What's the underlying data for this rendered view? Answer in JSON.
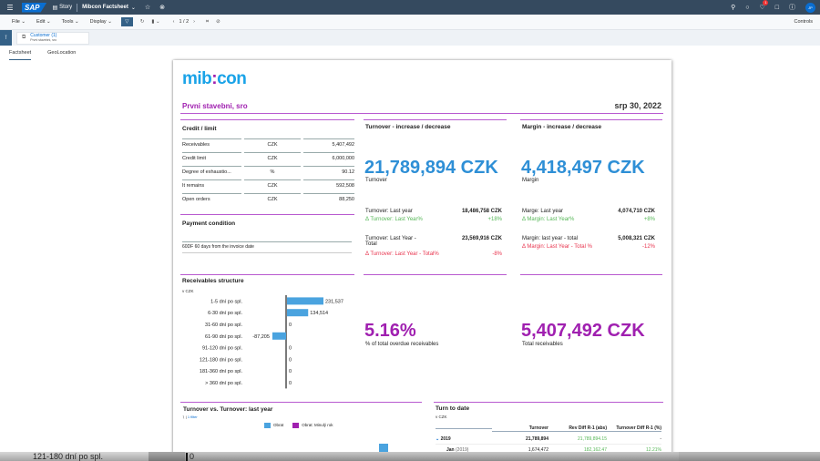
{
  "shell": {
    "brand": "SAP",
    "story_label": "Story",
    "title": "Mibcon Factsheet",
    "notification_count": "1",
    "avatar_initials": "JP"
  },
  "toolbar": {
    "menus": [
      "File",
      "Edit",
      "Tools",
      "Display"
    ],
    "page_indicator": "1 / 2",
    "controls_label": "Controls"
  },
  "filterbar": {
    "chip_title": "Customer (1)",
    "chip_subtitle": "Prvni stavebni, sro"
  },
  "tabs": [
    "Factsheet",
    "GeoLocation"
  ],
  "report": {
    "logo_left": "mib",
    "logo_colon": ":",
    "logo_right": "con",
    "company": "Prvni stavebni, sro",
    "date": "srp 30, 2022",
    "credit": {
      "title": "Credit / limit",
      "rows": [
        {
          "label": "Receivables",
          "unit": "CZK",
          "value": "5,407,492"
        },
        {
          "label": "Credit limit",
          "unit": "CZK",
          "value": "6,000,000"
        },
        {
          "label": "Degree of exhaustio...",
          "unit": "%",
          "value": "90.12"
        },
        {
          "label": "It remains",
          "unit": "CZK",
          "value": "592,508"
        },
        {
          "label": "Open orders",
          "unit": "CZK",
          "value": "88,250"
        }
      ]
    },
    "payment": {
      "title": "Payment condition",
      "value": "60DF 60 days from the invoice date"
    },
    "turnover": {
      "title": "Turnover - increase / decrease",
      "value": "21,789,894 CZK",
      "label": "Turnover",
      "ly_label": "Turnover: Last year",
      "ly_value": "18,486,758 CZK",
      "ly_delta_label": "Δ Turnover: Last Year%",
      "ly_delta_value": "+18%",
      "lyt_label_1": "Turnover: Last Year -",
      "lyt_label_2": "Total",
      "lyt_value": "23,569,916 CZK",
      "lyt_delta_label": "Δ Turnover: Last Year - Total%",
      "lyt_delta_value": "-8%"
    },
    "margin": {
      "title": "Margin - increase / decrease",
      "value": "4,418,497 CZK",
      "label": "Margin",
      "ly_label": "Marge: Last year",
      "ly_value": "4,074,710 CZK",
      "ly_delta_label": "Δ Margin: Last Year%",
      "ly_delta_value": "+8%",
      "lyt_label": "Margin: last year - total",
      "lyt_value": "5,008,321 CZK",
      "lyt_delta_label": "Δ Margin: Last Year - Total %",
      "lyt_delta_value": "-12%"
    },
    "overdue": {
      "value": "5.16%",
      "label": "% of total overdue receivables"
    },
    "total_receivables": {
      "value": "5,407,492 CZK",
      "label": "Total receivables"
    },
    "turnover_chart": {
      "title": "Turnover vs. Turnover: last year",
      "filter_label": "1 filter",
      "legend": [
        {
          "name": "Obrat",
          "color": "#4aa3df"
        },
        {
          "name": "Obrat: Minulý rok",
          "color": "#a020b0"
        }
      ]
    },
    "turn_to_date": {
      "title": "Turn to date",
      "unit": "v CZK",
      "headers": [
        "",
        "Turnover",
        "Rev Diff R-1 (abs)",
        "Turnover Diff R-1 (%)"
      ],
      "rows": [
        {
          "label": "2019",
          "sub": "",
          "turnover": "21,789,894",
          "abs": "21,789,894.15",
          "pct": "-"
        },
        {
          "label": "Jan",
          "sub": "(2019)",
          "turnover": "1,674,472",
          "abs": "182,162.47",
          "pct": "12.21%"
        }
      ]
    }
  },
  "chart_data": {
    "type": "bar",
    "title": "Receivables structure",
    "subtitle": "v CZK",
    "orientation": "horizontal",
    "categories": [
      "1-5 dní po spl.",
      "6-30 dní po spl.",
      "31-60 dní po spl.",
      "61-90 dní po spl.",
      "91-120 dní po spl.",
      "121-180 dní po spl.",
      "181-360 dní po spl.",
      "> 360 dní po spl."
    ],
    "values": [
      231537,
      134514,
      0,
      -87205,
      0,
      0,
      0,
      0
    ],
    "labels": [
      "231,537",
      "134,514",
      "0",
      "-87,205",
      "0",
      "0",
      "0",
      "0"
    ],
    "color": "#4aa3df"
  },
  "overlay": {
    "label": "121-180 dní po spl.",
    "value": "0"
  },
  "colors": {
    "shell": "#354a5f",
    "accent": "#a020b0",
    "kpi_blue": "#2e8fd6",
    "positive": "#56b757",
    "negative": "#e8344e"
  }
}
